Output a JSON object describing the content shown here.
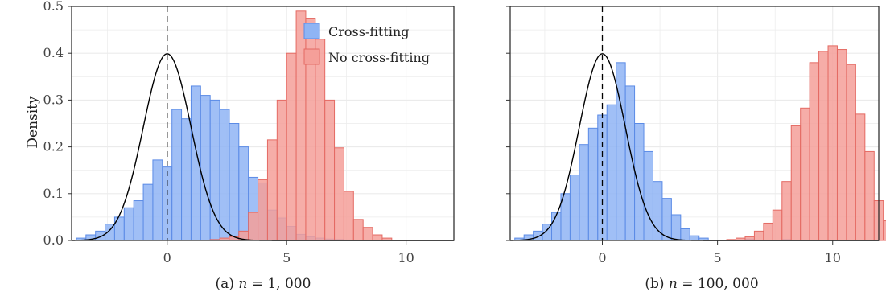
{
  "figure": {
    "ylabel": "Density",
    "legend": {
      "placement": "top-right of panel (a)",
      "items": [
        {
          "label": "Cross-fitting",
          "fill": "#8fb4f4",
          "stroke": "#5b8be6"
        },
        {
          "label": "No cross-fitting",
          "fill": "#f59f99",
          "stroke": "#e46a63"
        }
      ]
    },
    "colors": {
      "blue_fill": "#8fb4f4",
      "blue_stroke": "#5b8be6",
      "red_fill": "#f59f99",
      "red_stroke": "#e46a63",
      "curve": "#000000",
      "grid": "#ebebeb",
      "frame": "#222222"
    }
  },
  "chart_data": [
    {
      "type": "bar",
      "caption": "(a) n = 1,000",
      "caption_parts": {
        "prefix": "(a) ",
        "var": "n",
        "rest": " = 1, 000"
      },
      "ylabel": "Density",
      "xlim": [
        -4,
        12
      ],
      "ylim": [
        0,
        0.5
      ],
      "xticks": [
        0,
        5,
        10
      ],
      "yticks": [
        0.0,
        0.1,
        0.2,
        0.3,
        0.4,
        0.5
      ],
      "ytick_labels": [
        "0.0",
        "0.1",
        "0.2",
        "0.3",
        "0.4",
        "0.5"
      ],
      "grid": true,
      "vline_x": 0,
      "curve": {
        "type": "normal_pdf",
        "mean": 0,
        "sd": 1,
        "x_range": [
          -4,
          12
        ]
      },
      "series": [
        {
          "name": "Cross-fitting",
          "bin_width": 0.4,
          "bins_start": -3.8,
          "values": [
            0.005,
            0.012,
            0.02,
            0.035,
            0.05,
            0.07,
            0.085,
            0.12,
            0.172,
            0.157,
            0.28,
            0.26,
            0.33,
            0.31,
            0.3,
            0.28,
            0.25,
            0.2,
            0.135,
            0.123,
            0.065,
            0.048,
            0.03,
            0.013,
            0.008,
            0.005,
            0.003,
            0.002,
            0.001
          ]
        },
        {
          "name": "No cross-fitting",
          "bin_width": 0.4,
          "bins_start": 1.8,
          "values": [
            0.002,
            0.005,
            0.008,
            0.02,
            0.06,
            0.13,
            0.215,
            0.3,
            0.4,
            0.49,
            0.475,
            0.43,
            0.3,
            0.198,
            0.105,
            0.045,
            0.028,
            0.012,
            0.005
          ]
        }
      ]
    },
    {
      "type": "bar",
      "caption": "(b) n = 100,000",
      "caption_parts": {
        "prefix": "(b) ",
        "var": "n",
        "rest": " = 100, 000"
      },
      "xlim": [
        -4,
        12
      ],
      "ylim": [
        0,
        0.5
      ],
      "xticks": [
        0,
        5,
        10
      ],
      "grid": true,
      "vline_x": 0,
      "curve": {
        "type": "normal_pdf",
        "mean": 0,
        "sd": 1,
        "x_range": [
          -4,
          12
        ]
      },
      "series": [
        {
          "name": "Cross-fitting",
          "bin_width": 0.4,
          "bins_start": -3.8,
          "values": [
            0.005,
            0.012,
            0.02,
            0.035,
            0.06,
            0.1,
            0.14,
            0.205,
            0.24,
            0.268,
            0.29,
            0.38,
            0.33,
            0.25,
            0.19,
            0.126,
            0.09,
            0.055,
            0.025,
            0.01,
            0.005,
            0,
            0,
            0,
            0,
            0.003,
            0,
            0,
            0,
            0.002
          ]
        },
        {
          "name": "No cross-fitting",
          "bin_width": 0.4,
          "bins_start": 5.4,
          "values": [
            0.002,
            0.005,
            0.008,
            0.02,
            0.037,
            0.065,
            0.126,
            0.245,
            0.283,
            0.38,
            0.404,
            0.416,
            0.408,
            0.376,
            0.27,
            0.19,
            0.085,
            0.042,
            0.028,
            0.012,
            0.005
          ]
        }
      ]
    }
  ]
}
